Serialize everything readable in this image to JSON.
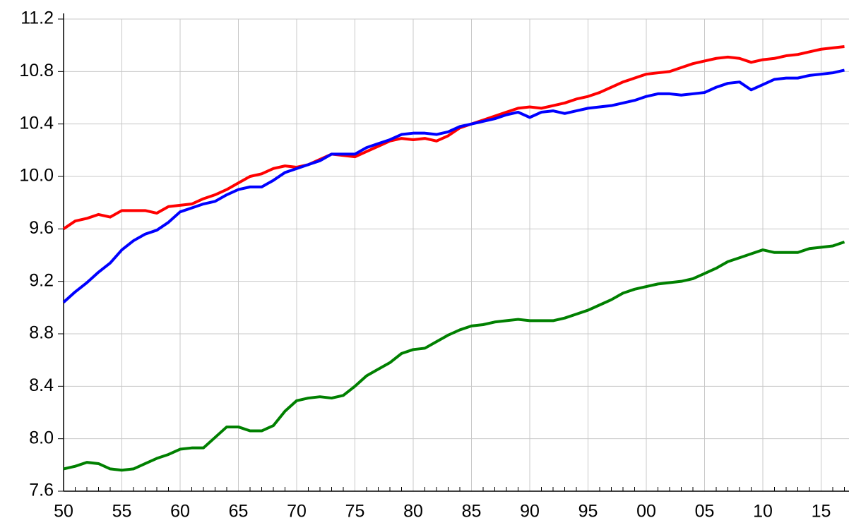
{
  "chart_data": {
    "type": "line",
    "categories": [
      "50",
      null,
      null,
      null,
      null,
      "55",
      null,
      null,
      null,
      null,
      "60",
      null,
      null,
      null,
      null,
      "65",
      null,
      null,
      null,
      null,
      "70",
      null,
      null,
      null,
      null,
      "75",
      null,
      null,
      null,
      null,
      "80",
      null,
      null,
      null,
      null,
      "85",
      null,
      null,
      null,
      null,
      "90",
      null,
      null,
      null,
      null,
      "95",
      null,
      null,
      null,
      null,
      "00",
      null,
      null,
      null,
      null,
      "05",
      null,
      null,
      null,
      null,
      "10",
      null,
      null,
      null,
      null,
      "15",
      null,
      null
    ],
    "series": [
      {
        "color": "#ff0000",
        "values": [
          9.6,
          9.66,
          9.68,
          9.71,
          9.69,
          9.74,
          9.74,
          9.74,
          9.72,
          9.77,
          9.78,
          9.79,
          9.83,
          9.86,
          9.9,
          9.95,
          10.0,
          10.02,
          10.06,
          10.08,
          10.07,
          10.09,
          10.13,
          10.17,
          10.16,
          10.15,
          10.19,
          10.23,
          10.27,
          10.29,
          10.28,
          10.29,
          10.27,
          10.31,
          10.37,
          10.4,
          10.43,
          10.46,
          10.49,
          10.52,
          10.53,
          10.52,
          10.54,
          10.56,
          10.59,
          10.61,
          10.64,
          10.68,
          10.72,
          10.75,
          10.78,
          10.79,
          10.8,
          10.83,
          10.86,
          10.88,
          10.9,
          10.91,
          10.9,
          10.87,
          10.89,
          10.9,
          10.92,
          10.93,
          10.95,
          10.97,
          10.98,
          10.99
        ]
      },
      {
        "color": "#0000ff",
        "values": [
          9.04,
          9.12,
          9.19,
          9.27,
          9.34,
          9.44,
          9.51,
          9.56,
          9.59,
          9.65,
          9.73,
          9.76,
          9.79,
          9.81,
          9.86,
          9.9,
          9.92,
          9.92,
          9.97,
          10.03,
          10.06,
          10.09,
          10.12,
          10.17,
          10.17,
          10.17,
          10.22,
          10.25,
          10.28,
          10.32,
          10.33,
          10.33,
          10.32,
          10.34,
          10.38,
          10.4,
          10.42,
          10.44,
          10.47,
          10.49,
          10.45,
          10.49,
          10.5,
          10.48,
          10.5,
          10.52,
          10.53,
          10.54,
          10.56,
          10.58,
          10.61,
          10.63,
          10.63,
          10.62,
          10.63,
          10.64,
          10.68,
          10.71,
          10.72,
          10.66,
          10.7,
          10.74,
          10.75,
          10.75,
          10.77,
          10.78,
          10.79,
          10.81
        ]
      },
      {
        "color": "#008000",
        "values": [
          7.77,
          7.79,
          7.82,
          7.81,
          7.77,
          7.76,
          7.77,
          7.81,
          7.85,
          7.88,
          7.92,
          7.93,
          7.93,
          8.01,
          8.09,
          8.09,
          8.06,
          8.06,
          8.1,
          8.21,
          8.29,
          8.31,
          8.32,
          8.31,
          8.33,
          8.4,
          8.48,
          8.53,
          8.58,
          8.65,
          8.68,
          8.69,
          8.74,
          8.79,
          8.83,
          8.86,
          8.87,
          8.89,
          8.9,
          8.91,
          8.9,
          8.9,
          8.9,
          8.92,
          8.95,
          8.98,
          9.02,
          9.06,
          9.11,
          9.14,
          9.16,
          9.18,
          9.19,
          9.2,
          9.22,
          9.26,
          9.3,
          9.35,
          9.38,
          9.41,
          9.44,
          9.42,
          9.42,
          9.42,
          9.45,
          9.46,
          9.47,
          9.5
        ]
      }
    ],
    "ylim": [
      7.6,
      11.2
    ],
    "yticks": [
      7.6,
      {
        "value": 8.0,
        "label": "8.0"
      },
      8.4,
      8.8,
      9.2,
      9.6,
      {
        "value": 10.0,
        "label": "10.0"
      },
      10.4,
      10.8,
      11.2
    ],
    "grid": true
  }
}
